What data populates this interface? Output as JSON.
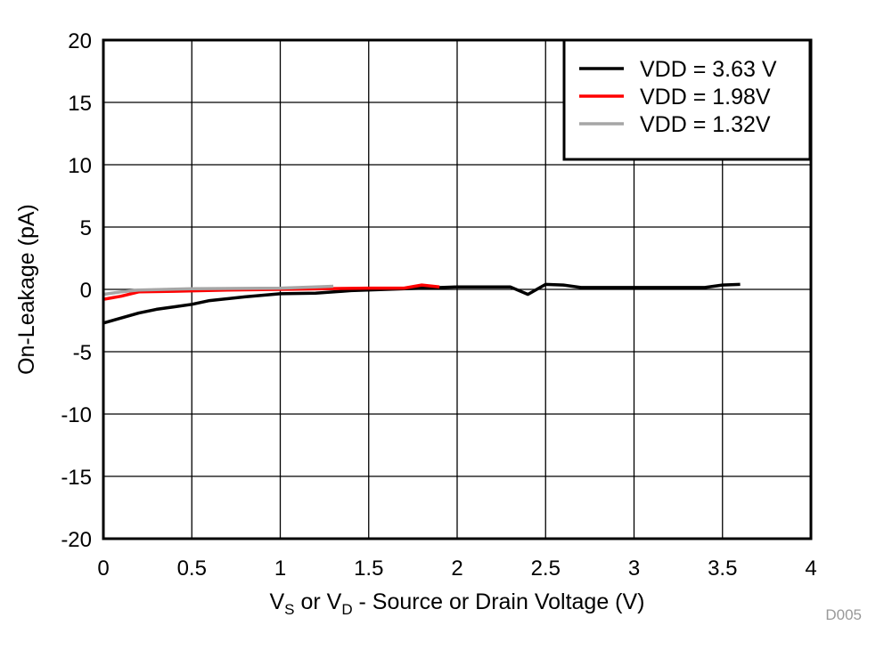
{
  "chart_data": {
    "type": "line",
    "title": "",
    "xlabel": {
      "main1": "V",
      "sub1": "S",
      "mid": " or V",
      "sub2": "D",
      "rest": " - Source or Drain Voltage (V)"
    },
    "ylabel": "On-Leakage (pA)",
    "xlim": [
      0,
      4
    ],
    "ylim": [
      -20,
      20
    ],
    "xticks": [
      "0",
      "0.5",
      "1",
      "1.5",
      "2",
      "2.5",
      "3",
      "3.5",
      "4"
    ],
    "xtick_values": [
      0,
      0.5,
      1,
      1.5,
      2,
      2.5,
      3,
      3.5,
      4
    ],
    "yticks": [
      "20",
      "15",
      "10",
      "5",
      "0",
      "-5",
      "-10",
      "-15",
      "-20"
    ],
    "ytick_values": [
      20,
      15,
      10,
      5,
      0,
      -5,
      -10,
      -15,
      -20
    ],
    "grid": true,
    "legend_position": "top-right",
    "watermark": "D005",
    "series": [
      {
        "name": "VDD = 3.63 V",
        "color": "#000000",
        "x": [
          0,
          0.1,
          0.2,
          0.3,
          0.4,
          0.5,
          0.6,
          0.8,
          1.0,
          1.2,
          1.4,
          1.6,
          1.8,
          2.0,
          2.3,
          2.4,
          2.5,
          2.6,
          2.7,
          3.0,
          3.4,
          3.5,
          3.6
        ],
        "y": [
          -2.7,
          -2.3,
          -1.9,
          -1.6,
          -1.4,
          -1.2,
          -0.9,
          -0.6,
          -0.35,
          -0.3,
          -0.1,
          0.0,
          0.1,
          0.2,
          0.2,
          -0.4,
          0.4,
          0.35,
          0.15,
          0.15,
          0.15,
          0.35,
          0.4
        ]
      },
      {
        "name": "VDD = 1.98V",
        "color": "#ff0000",
        "x": [
          0,
          0.1,
          0.2,
          0.4,
          0.7,
          1.0,
          1.5,
          1.7,
          1.8,
          1.9
        ],
        "y": [
          -0.8,
          -0.55,
          -0.2,
          -0.15,
          -0.05,
          0.0,
          0.1,
          0.1,
          0.35,
          0.2
        ]
      },
      {
        "name": "VDD = 1.32V",
        "color": "#a6a6a6",
        "x": [
          0,
          0.1,
          0.2,
          0.5,
          1.0,
          1.2,
          1.3
        ],
        "y": [
          -0.4,
          -0.2,
          -0.05,
          0.05,
          0.1,
          0.2,
          0.25
        ]
      }
    ]
  }
}
